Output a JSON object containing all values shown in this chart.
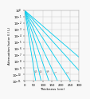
{
  "title": "",
  "xlabel": "Thickness (cm)",
  "ylabel": "Attenuation factor (I / I₀)",
  "xlim": [
    0,
    300
  ],
  "ylim_log": [
    -11,
    0
  ],
  "background_color": "#f8f8f8",
  "grid_color": "#cccccc",
  "line_color": "#00ccee",
  "line_width": 0.6,
  "lines": [
    {
      "mu": 0.42,
      "label": "0.1"
    },
    {
      "mu": 0.28,
      "label": "0.2"
    },
    {
      "mu": 0.19,
      "label": "0.5"
    },
    {
      "mu": 0.14,
      "label": "1"
    },
    {
      "mu": 0.1,
      "label": "2"
    },
    {
      "mu": 0.072,
      "label": "5"
    },
    {
      "mu": 0.056,
      "label": "10"
    }
  ]
}
